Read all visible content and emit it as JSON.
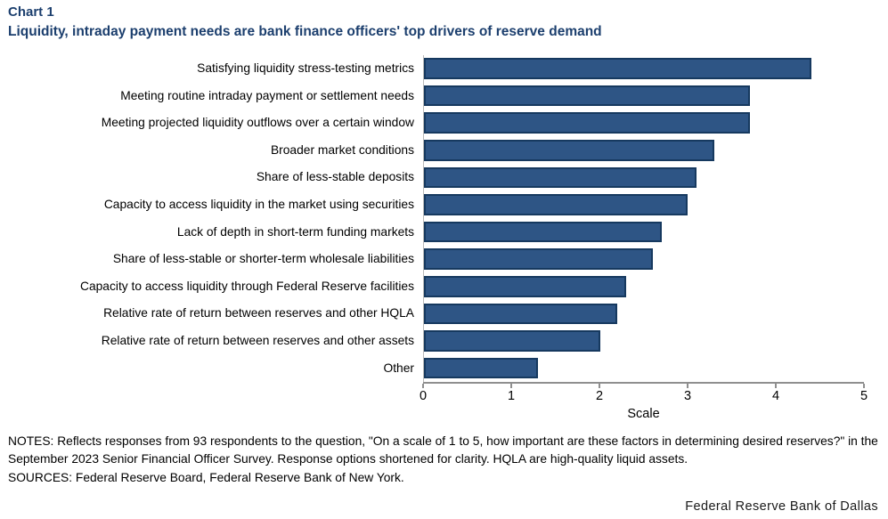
{
  "header": {
    "chart_label": "Chart 1",
    "title": "Liquidity, intraday payment needs are bank finance officers' top drivers of reserve demand"
  },
  "chart_data": {
    "type": "bar",
    "orientation": "horizontal",
    "title": "Liquidity, intraday payment needs are bank finance officers' top drivers of reserve demand",
    "categories": [
      "Satisfying liquidity stress-testing metrics",
      "Meeting routine intraday payment or settlement needs",
      "Meeting projected liquidity outflows over a certain window",
      "Broader market conditions",
      "Share of less-stable deposits",
      "Capacity to access liquidity in the market using securities",
      "Lack of depth in short-term funding markets",
      "Share of less-stable or shorter-term wholesale liabilities",
      "Capacity to access liquidity through Federal Reserve facilities",
      "Relative rate of return between reserves and other HQLA",
      "Relative rate of return between reserves and other assets",
      "Other"
    ],
    "values": [
      4.4,
      3.7,
      3.7,
      3.3,
      3.1,
      3.0,
      2.7,
      2.6,
      2.3,
      2.2,
      2.0,
      1.3
    ],
    "xlabel": "Scale",
    "xlim": [
      0,
      5
    ],
    "xticks": [
      0,
      1,
      2,
      3,
      4,
      5
    ],
    "grid": false,
    "legend": "none",
    "bar_color": "#2e5585",
    "bar_border_color": "#16395f"
  },
  "footer": {
    "notes": "NOTES: Reflects responses from 93 respondents to the question, \"On a scale of 1 to 5, how important are these factors in determining desired reserves?\" in the September 2023 Senior Financial Officer Survey. Response options shortened for clarity. HQLA are high-quality liquid assets.",
    "sources": "SOURCES: Federal Reserve Board, Federal Reserve Bank of New York.",
    "credit": "Federal Reserve Bank of Dallas"
  },
  "colors": {
    "title_text": "#1c3f6e",
    "axis_line": "#8f8f8f",
    "background": "#ffffff"
  }
}
